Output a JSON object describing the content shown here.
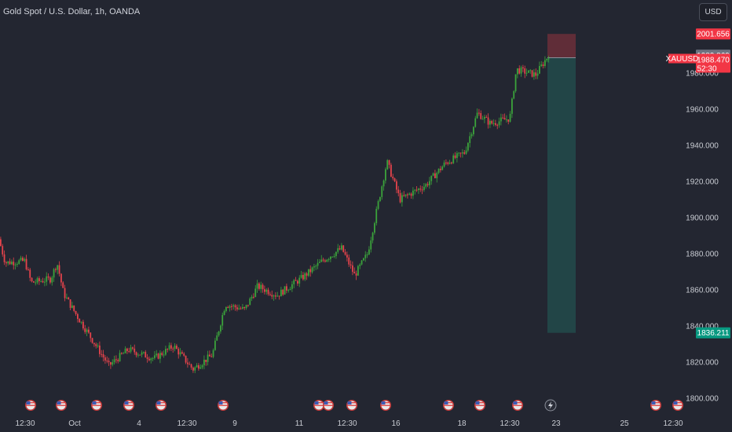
{
  "header": {
    "title": "Gold Spot / U.S. Dollar, 1h, OANDA",
    "currency_button": "USD"
  },
  "colors": {
    "background": "#232631",
    "up": "#26a69a",
    "down": "#ef5350",
    "up_candle": "#3ba33b",
    "down_candle": "#e5434b",
    "stop_zone": "#6b2f3a",
    "target_zone": "#22494a"
  },
  "chart_data": {
    "type": "candlestick",
    "symbol": "XAUUSD",
    "timeframe": "1h",
    "y_axis": {
      "ticks": [
        1800,
        1820,
        1840,
        1860,
        1880,
        1900,
        1920,
        1940,
        1960,
        1980
      ],
      "tick_labels": [
        "1800.000",
        "1820.000",
        "1840.000",
        "1860.000",
        "1880.000",
        "1900.000",
        "1920.000",
        "1940.000",
        "1960.000",
        "1980.000"
      ],
      "ylim": [
        1795,
        2010
      ]
    },
    "x_axis": {
      "tick_labels": [
        "12:30",
        "Oct",
        "4",
        "12:30",
        "9",
        "11",
        "12:30",
        "16",
        "18",
        "12:30",
        "23",
        "25",
        "12:30"
      ]
    },
    "price_path": [
      {
        "t": 0,
        "p": 1888
      },
      {
        "t": 0.01,
        "p": 1875
      },
      {
        "t": 0.04,
        "p": 1876
      },
      {
        "t": 0.05,
        "p": 1864
      },
      {
        "t": 0.08,
        "p": 1866
      },
      {
        "t": 0.09,
        "p": 1875
      },
      {
        "t": 0.1,
        "p": 1858
      },
      {
        "t": 0.12,
        "p": 1846
      },
      {
        "t": 0.145,
        "p": 1832
      },
      {
        "t": 0.17,
        "p": 1818
      },
      {
        "t": 0.2,
        "p": 1827
      },
      {
        "t": 0.24,
        "p": 1822
      },
      {
        "t": 0.27,
        "p": 1829
      },
      {
        "t": 0.3,
        "p": 1816
      },
      {
        "t": 0.33,
        "p": 1824
      },
      {
        "t": 0.35,
        "p": 1852
      },
      {
        "t": 0.38,
        "p": 1849
      },
      {
        "t": 0.4,
        "p": 1862
      },
      {
        "t": 0.43,
        "p": 1857
      },
      {
        "t": 0.47,
        "p": 1867
      },
      {
        "t": 0.5,
        "p": 1876
      },
      {
        "t": 0.53,
        "p": 1883
      },
      {
        "t": 0.55,
        "p": 1868
      },
      {
        "t": 0.57,
        "p": 1880
      },
      {
        "t": 0.6,
        "p": 1931
      },
      {
        "t": 0.62,
        "p": 1910
      },
      {
        "t": 0.66,
        "p": 1918
      },
      {
        "t": 0.69,
        "p": 1930
      },
      {
        "t": 0.72,
        "p": 1936
      },
      {
        "t": 0.74,
        "p": 1958
      },
      {
        "t": 0.76,
        "p": 1952
      },
      {
        "t": 0.79,
        "p": 1955
      },
      {
        "t": 0.8,
        "p": 1982
      },
      {
        "t": 0.83,
        "p": 1979
      },
      {
        "t": 0.85,
        "p": 1990
      }
    ],
    "position": {
      "entry": 1988.47,
      "stop_loss": 2001.656,
      "take_profit": 1836.211
    },
    "labels": {
      "stop_price": "2001.656",
      "current_price": "1989.869",
      "symbol_price": "1988.470",
      "countdown": "52:30",
      "target_price": "1836.211",
      "symbol": "XAUUSD"
    },
    "event_markers": 20
  }
}
